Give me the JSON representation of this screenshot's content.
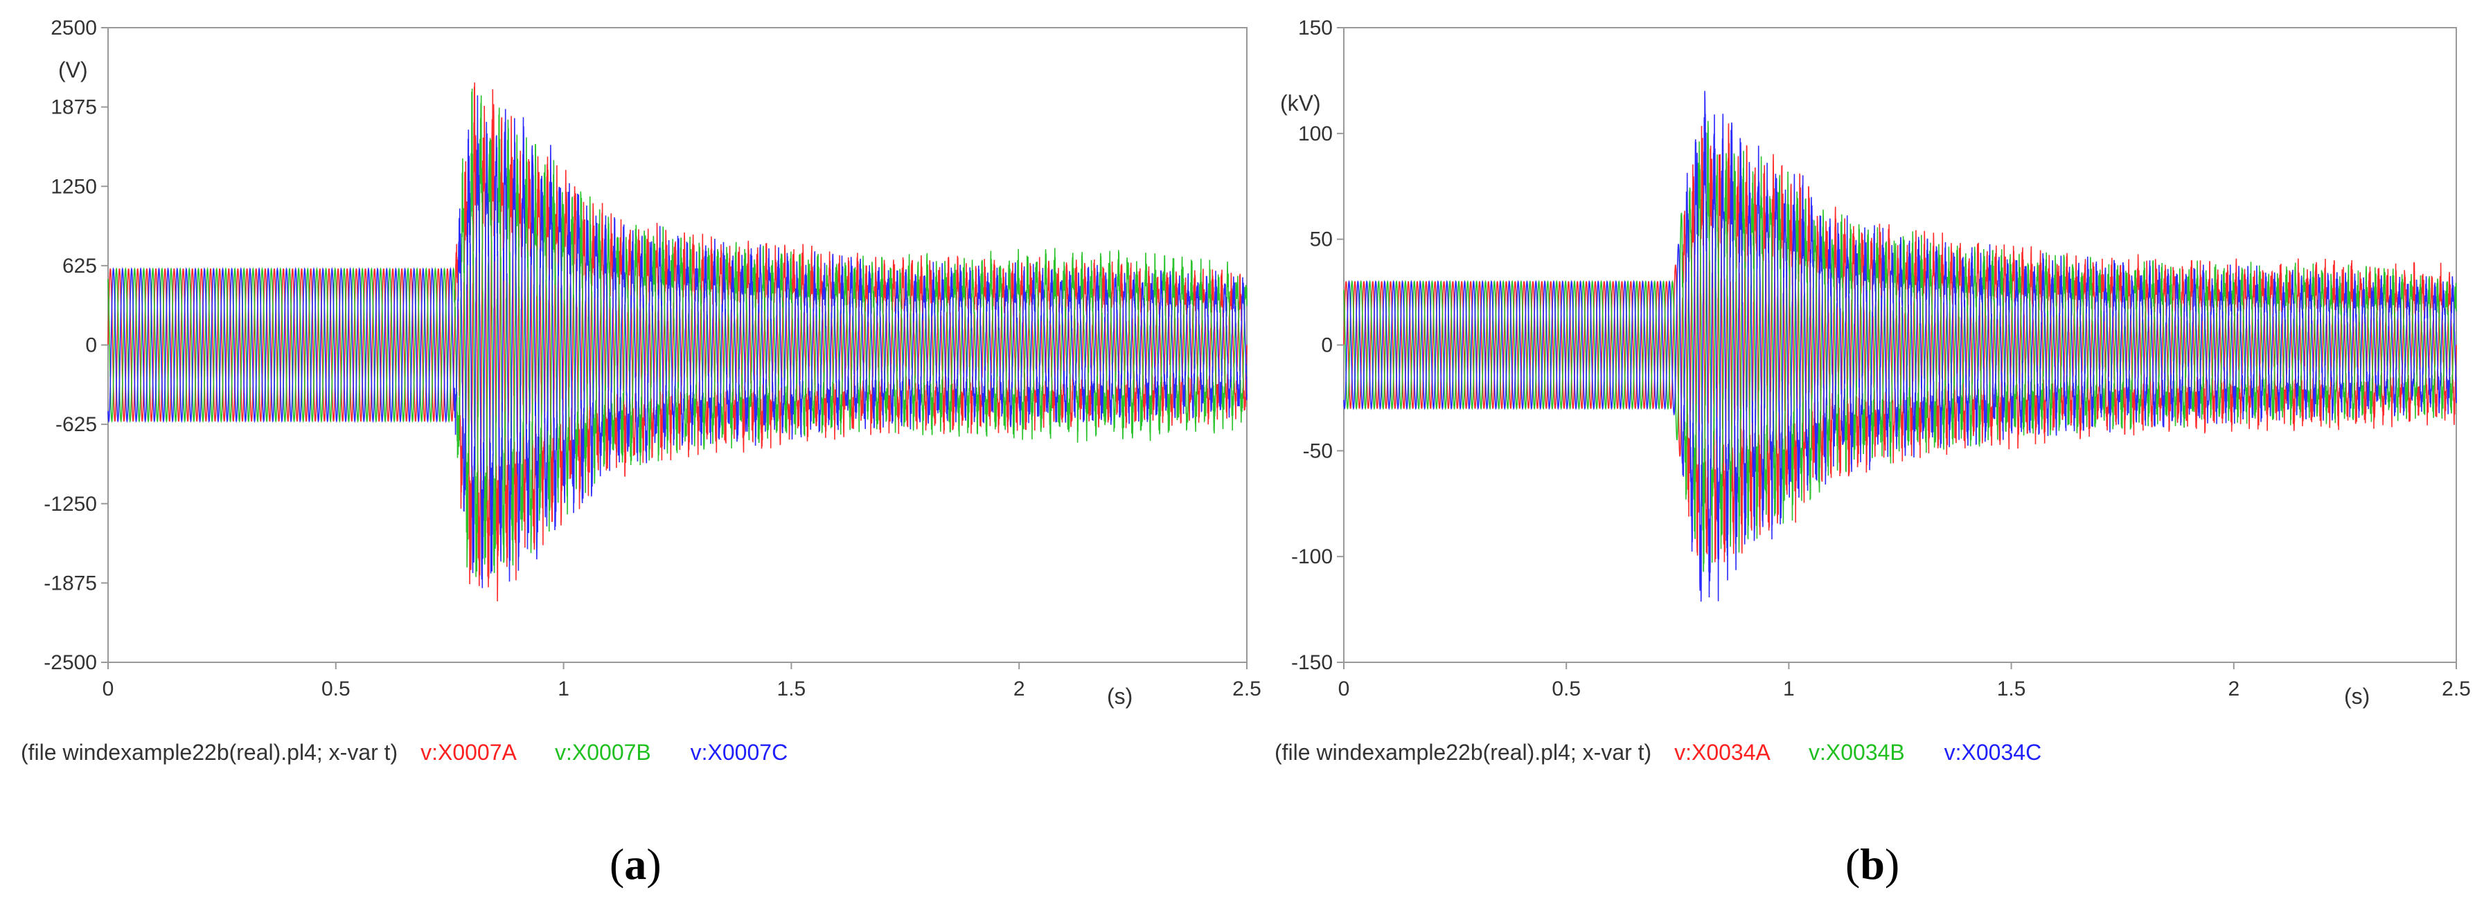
{
  "chart_data": [
    {
      "id": "a",
      "type": "line",
      "caption_letter": "a",
      "y_unit": "(V)",
      "x_unit": "(s)",
      "x_ticks": [
        "0",
        "0.5",
        "1",
        "1.5",
        "2",
        "2.5"
      ],
      "y_ticks": [
        "2500",
        "1875",
        "1250",
        "625",
        "0",
        "-625",
        "-1250",
        "-1875",
        "-2500"
      ],
      "xlim": [
        0,
        2.5
      ],
      "ylim": [
        -2500,
        2500
      ],
      "grid": false,
      "legend_position": "bottom-left",
      "legend_prefix": "(file windexample22b(real).pl4; x-var t)",
      "series": [
        {
          "name": "v:X0007A",
          "color": "#ff2020",
          "envelope_t": [
            0,
            0.76,
            0.78,
            0.8,
            0.84,
            0.9,
            1.0,
            1.1,
            1.3,
            1.5,
            1.7,
            2.0,
            2.3,
            2.5
          ],
          "envelope_v": [
            600,
            600,
            1400,
            2100,
            2000,
            1700,
            1300,
            1000,
            800,
            750,
            650,
            650,
            600,
            550
          ]
        },
        {
          "name": "v:X0007B",
          "color": "#20c020",
          "envelope_t": [
            0,
            0.76,
            0.78,
            0.8,
            0.84,
            0.9,
            1.0,
            1.1,
            1.3,
            1.5,
            1.7,
            2.0,
            2.3,
            2.5
          ],
          "envelope_v": [
            600,
            600,
            1500,
            1950,
            1850,
            1600,
            1250,
            950,
            780,
            700,
            650,
            700,
            700,
            600
          ]
        },
        {
          "name": "v:X0007C",
          "color": "#2020ff",
          "envelope_t": [
            0,
            0.76,
            0.78,
            0.8,
            0.84,
            0.9,
            1.0,
            1.1,
            1.3,
            1.5,
            1.7,
            2.0,
            2.3,
            2.5
          ],
          "envelope_v": [
            600,
            600,
            1300,
            1900,
            1800,
            1700,
            1350,
            950,
            780,
            700,
            620,
            600,
            560,
            520
          ]
        }
      ]
    },
    {
      "id": "b",
      "type": "line",
      "caption_letter": "b",
      "y_unit": "(kV)",
      "x_unit": "(s)",
      "x_ticks": [
        "0",
        "0.5",
        "1",
        "1.5",
        "2",
        "2.5"
      ],
      "y_ticks": [
        "150",
        "100",
        "50",
        "0",
        "-50",
        "-100",
        "-150"
      ],
      "xlim": [
        0,
        2.5
      ],
      "ylim": [
        -150,
        150
      ],
      "grid": false,
      "legend_position": "bottom-left",
      "legend_prefix": "(file windexample22b(real).pl4; x-var t)",
      "series": [
        {
          "name": "v:X0034A",
          "color": "#ff2020",
          "envelope_t": [
            0,
            0.74,
            0.76,
            0.8,
            0.85,
            0.9,
            1.0,
            1.1,
            1.3,
            1.5,
            1.7,
            2.0,
            2.3,
            2.5
          ],
          "envelope_v": [
            30,
            30,
            60,
            105,
            100,
            90,
            80,
            60,
            50,
            45,
            40,
            38,
            38,
            35
          ]
        },
        {
          "name": "v:X0034B",
          "color": "#20c020",
          "envelope_t": [
            0,
            0.74,
            0.76,
            0.8,
            0.85,
            0.9,
            1.0,
            1.1,
            1.3,
            1.5,
            1.7,
            2.0,
            2.3,
            2.5
          ],
          "envelope_v": [
            30,
            30,
            65,
            100,
            95,
            88,
            78,
            58,
            48,
            42,
            38,
            36,
            35,
            32
          ]
        },
        {
          "name": "v:X0034C",
          "color": "#2020ff",
          "envelope_t": [
            0,
            0.74,
            0.76,
            0.8,
            0.85,
            0.9,
            1.0,
            1.1,
            1.3,
            1.5,
            1.7,
            2.0,
            2.3,
            2.5
          ],
          "envelope_v": [
            30,
            30,
            60,
            125,
            110,
            92,
            80,
            58,
            48,
            42,
            38,
            35,
            32,
            30
          ]
        }
      ]
    }
  ]
}
